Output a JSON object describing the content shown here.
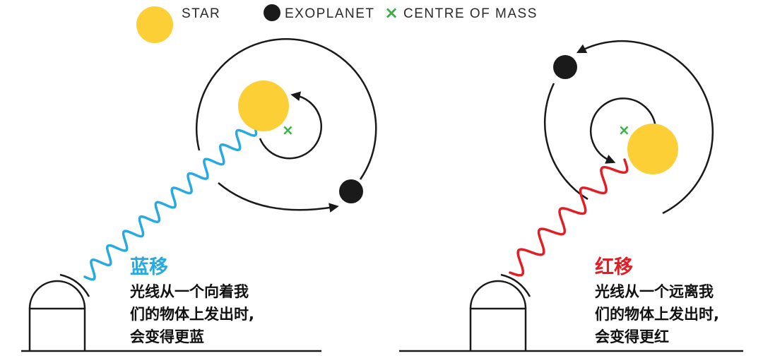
{
  "legend": {
    "star_label": "STAR",
    "planet_label": "EXOPLANET",
    "com_label": "CENTRE OF MASS",
    "com_symbol": "×"
  },
  "left_panel": {
    "title": "蓝移",
    "lines": [
      "光线从一个向着我",
      "们的物体上发出时,",
      "会变得更蓝"
    ]
  },
  "right_panel": {
    "title": "红移",
    "lines": [
      "光线从一个远离我",
      "们的物体上发出时,",
      "会变得更红"
    ]
  },
  "colors": {
    "star": "#fccf37",
    "planet": "#1a1a1a",
    "com": "#3aae48",
    "blueshift": "#27a9e1",
    "redshift": "#e21d24",
    "line": "#1a1a1a"
  }
}
